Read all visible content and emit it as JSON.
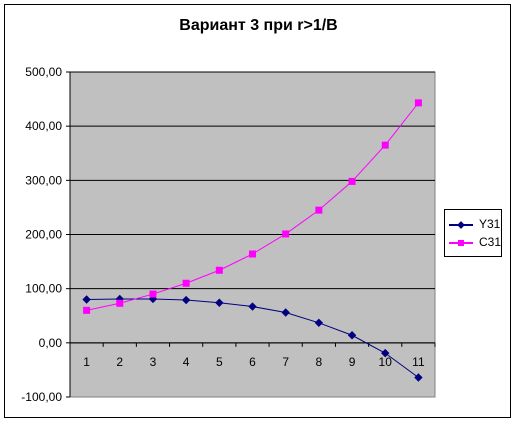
{
  "chart_data": {
    "type": "line",
    "title": "Вариант 3 при r>1/B",
    "xlabel": "",
    "ylabel": "",
    "categories": [
      "1",
      "2",
      "3",
      "4",
      "5",
      "6",
      "7",
      "8",
      "9",
      "10",
      "11"
    ],
    "ylim": [
      -100,
      500
    ],
    "yticks": [
      -100,
      0,
      100,
      200,
      300,
      400,
      500
    ],
    "ytick_labels": [
      "-100,00",
      "0,00",
      "100,00",
      "200,00",
      "300,00",
      "400,00",
      "500,00"
    ],
    "grid": "horizontal",
    "legend_position": "right",
    "plot_background": "#c0c0c0",
    "series": [
      {
        "name": "Y31",
        "color": "#000080",
        "marker": "diamond",
        "values": [
          80,
          81,
          81,
          79,
          74,
          67,
          56,
          37,
          14,
          -19,
          -64
        ]
      },
      {
        "name": "C31",
        "color": "#ff00ff",
        "marker": "square",
        "values": [
          60,
          73,
          90,
          110,
          134,
          164,
          201,
          245,
          298,
          365,
          443
        ]
      }
    ]
  }
}
